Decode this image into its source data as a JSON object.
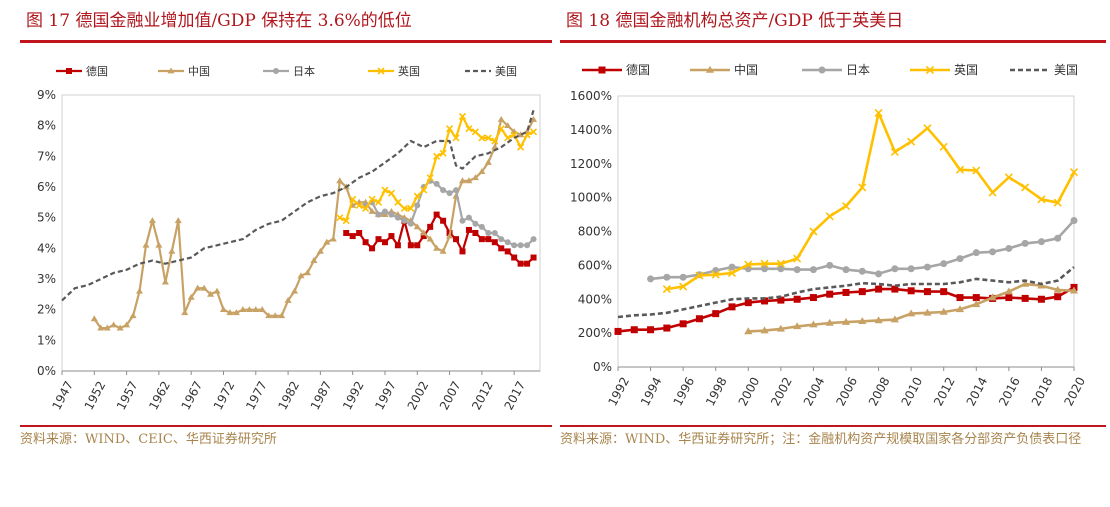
{
  "figures": [
    {
      "title": "图 17   德国金融业增加值/GDP 保持在 3.6%的低位",
      "source": "资料来源：WIND、CEIC、华西证券研究所",
      "chart_data": {
        "type": "line",
        "x_ticks": [
          "1947",
          "1952",
          "1957",
          "1962",
          "1967",
          "1972",
          "1977",
          "1982",
          "1987",
          "1992",
          "1997",
          "2002",
          "2007",
          "2012",
          "2017"
        ],
        "xlim": [
          1947,
          2021
        ],
        "ylim": [
          0,
          9
        ],
        "y_ticks": [
          "0%",
          "1%",
          "2%",
          "3%",
          "4%",
          "5%",
          "6%",
          "7%",
          "8%",
          "9%"
        ],
        "grid": false,
        "legend": "top",
        "series": [
          {
            "name": "德国",
            "color": "#c00000",
            "marker": "square",
            "x": [
              1991,
              1992,
              1993,
              1994,
              1995,
              1996,
              1997,
              1998,
              1999,
              2000,
              2001,
              2002,
              2003,
              2004,
              2005,
              2006,
              2007,
              2008,
              2009,
              2010,
              2011,
              2012,
              2013,
              2014,
              2015,
              2016,
              2017,
              2018,
              2019,
              2020
            ],
            "y": [
              4.5,
              4.4,
              4.5,
              4.2,
              4.0,
              4.3,
              4.2,
              4.4,
              4.1,
              4.9,
              4.1,
              4.1,
              4.4,
              4.7,
              5.1,
              4.9,
              4.5,
              4.3,
              3.9,
              4.6,
              4.5,
              4.3,
              4.3,
              4.2,
              4.0,
              3.9,
              3.7,
              3.5,
              3.5,
              3.7
            ]
          },
          {
            "name": "中国",
            "color": "#c8a265",
            "marker": "triangle",
            "x": [
              1952,
              1953,
              1954,
              1955,
              1956,
              1957,
              1958,
              1959,
              1960,
              1961,
              1962,
              1963,
              1964,
              1965,
              1966,
              1967,
              1968,
              1969,
              1970,
              1971,
              1972,
              1973,
              1974,
              1975,
              1976,
              1977,
              1978,
              1979,
              1980,
              1981,
              1982,
              1983,
              1984,
              1985,
              1986,
              1987,
              1988,
              1989,
              1990,
              1991,
              1992,
              1993,
              1994,
              1995,
              1996,
              1997,
              1998,
              1999,
              2000,
              2001,
              2002,
              2003,
              2004,
              2005,
              2006,
              2007,
              2008,
              2009,
              2010,
              2011,
              2012,
              2013,
              2014,
              2015,
              2016,
              2017,
              2018,
              2019,
              2020
            ],
            "y": [
              1.7,
              1.4,
              1.4,
              1.5,
              1.4,
              1.5,
              1.8,
              2.6,
              4.1,
              4.9,
              4.1,
              2.9,
              3.9,
              4.9,
              1.9,
              2.4,
              2.7,
              2.7,
              2.5,
              2.6,
              2.0,
              1.9,
              1.9,
              2.0,
              2.0,
              2.0,
              2.0,
              1.8,
              1.8,
              1.8,
              2.3,
              2.6,
              3.1,
              3.2,
              3.6,
              3.9,
              4.2,
              4.3,
              6.2,
              6.0,
              5.4,
              5.5,
              5.5,
              5.2,
              5.1,
              5.1,
              5.2,
              5.1,
              5.0,
              4.9,
              4.7,
              4.5,
              4.3,
              4.0,
              3.9,
              4.4,
              5.7,
              6.2,
              6.2,
              6.3,
              6.5,
              6.8,
              7.3,
              8.2,
              8.0,
              7.8,
              7.7,
              7.8,
              8.2
            ]
          },
          {
            "name": "日本",
            "color": "#a6a6a6",
            "marker": "circle",
            "x": [
              1994,
              1995,
              1996,
              1997,
              1998,
              1999,
              2000,
              2001,
              2002,
              2003,
              2004,
              2005,
              2006,
              2007,
              2008,
              2009,
              2010,
              2011,
              2012,
              2013,
              2014,
              2015,
              2016,
              2017,
              2018,
              2019,
              2020
            ],
            "y": [
              5.4,
              5.5,
              5.1,
              5.2,
              5.1,
              5.0,
              4.9,
              4.8,
              5.4,
              6.0,
              6.2,
              6.1,
              5.9,
              5.8,
              5.9,
              4.9,
              5.0,
              4.8,
              4.7,
              4.5,
              4.5,
              4.3,
              4.2,
              4.1,
              4.1,
              4.1,
              4.3
            ]
          },
          {
            "name": "英国",
            "color": "#ffc000",
            "marker": "x",
            "x": [
              1990,
              1991,
              1992,
              1993,
              1994,
              1995,
              1996,
              1997,
              1998,
              1999,
              2000,
              2001,
              2002,
              2003,
              2004,
              2005,
              2006,
              2007,
              2008,
              2009,
              2010,
              2011,
              2012,
              2013,
              2014,
              2015,
              2016,
              2017,
              2018,
              2019,
              2020
            ],
            "y": [
              5.0,
              4.9,
              5.6,
              5.4,
              5.3,
              5.6,
              5.5,
              5.9,
              5.8,
              5.5,
              5.3,
              5.3,
              5.7,
              5.9,
              6.3,
              7.0,
              7.1,
              7.9,
              7.6,
              8.3,
              7.9,
              7.8,
              7.6,
              7.6,
              7.5,
              7.9,
              7.6,
              7.7,
              7.3,
              7.7,
              7.8
            ]
          },
          {
            "name": "美国",
            "color": "#595959",
            "marker": "none",
            "dash": true,
            "x": [
              1947,
              1949,
              1951,
              1953,
              1955,
              1957,
              1959,
              1961,
              1963,
              1965,
              1967,
              1969,
              1971,
              1973,
              1975,
              1977,
              1979,
              1981,
              1983,
              1985,
              1987,
              1989,
              1991,
              1993,
              1995,
              1997,
              1999,
              2001,
              2003,
              2005,
              2007,
              2008,
              2009,
              2011,
              2013,
              2015,
              2017,
              2019,
              2020
            ],
            "y": [
              2.3,
              2.7,
              2.8,
              3.0,
              3.2,
              3.3,
              3.5,
              3.6,
              3.5,
              3.6,
              3.7,
              4.0,
              4.1,
              4.2,
              4.3,
              4.6,
              4.8,
              4.9,
              5.2,
              5.5,
              5.7,
              5.8,
              6.0,
              6.3,
              6.5,
              6.8,
              7.1,
              7.5,
              7.3,
              7.5,
              7.5,
              6.7,
              6.6,
              7.0,
              7.1,
              7.3,
              7.6,
              7.8,
              8.5
            ]
          }
        ]
      }
    },
    {
      "title": "图 18   德国金融机构总资产/GDP 低于英美日",
      "source": "资料来源：WIND、华西证券研究所；注：金融机构资产规模取国家各分部资产负债表口径",
      "chart_data": {
        "type": "line",
        "x_ticks": [
          "1992",
          "1994",
          "1996",
          "1998",
          "2000",
          "2002",
          "2004",
          "2006",
          "2008",
          "2010",
          "2012",
          "2014",
          "2016",
          "2018",
          "2020"
        ],
        "xlim": [
          1992,
          2020
        ],
        "ylim": [
          0,
          1600
        ],
        "y_ticks": [
          "0%",
          "200%",
          "400%",
          "600%",
          "800%",
          "1000%",
          "1200%",
          "1400%",
          "1600%"
        ],
        "grid": false,
        "legend": "top",
        "series": [
          {
            "name": "德国",
            "color": "#c00000",
            "marker": "square",
            "x": [
              1992,
              1993,
              1994,
              1995,
              1996,
              1997,
              1998,
              1999,
              2000,
              2001,
              2002,
              2003,
              2004,
              2005,
              2006,
              2007,
              2008,
              2009,
              2010,
              2011,
              2012,
              2013,
              2014,
              2015,
              2016,
              2017,
              2018,
              2019,
              2020
            ],
            "y": [
              210,
              220,
              220,
              230,
              255,
              285,
              315,
              355,
              380,
              390,
              395,
              400,
              410,
              430,
              440,
              445,
              460,
              460,
              450,
              445,
              445,
              410,
              410,
              405,
              410,
              405,
              400,
              415,
              470
            ]
          },
          {
            "name": "中国",
            "color": "#c8a265",
            "marker": "triangle",
            "x": [
              2000,
              2001,
              2002,
              2003,
              2004,
              2005,
              2006,
              2007,
              2008,
              2009,
              2010,
              2011,
              2012,
              2013,
              2014,
              2015,
              2016,
              2017,
              2018,
              2019,
              2020
            ],
            "y": [
              210,
              215,
              225,
              240,
              250,
              260,
              265,
              270,
              275,
              280,
              315,
              320,
              325,
              340,
              370,
              410,
              445,
              490,
              480,
              455,
              450
            ]
          },
          {
            "name": "日本",
            "color": "#a6a6a6",
            "marker": "circle",
            "x": [
              1994,
              1995,
              1996,
              1997,
              1998,
              1999,
              2000,
              2001,
              2002,
              2003,
              2004,
              2005,
              2006,
              2007,
              2008,
              2009,
              2010,
              2011,
              2012,
              2013,
              2014,
              2015,
              2016,
              2017,
              2018,
              2019,
              2020
            ],
            "y": [
              520,
              530,
              530,
              545,
              570,
              590,
              580,
              580,
              580,
              575,
              575,
              600,
              575,
              565,
              550,
              580,
              580,
              590,
              610,
              640,
              675,
              680,
              700,
              730,
              740,
              760,
              865
            ]
          },
          {
            "name": "英国",
            "color": "#ffc000",
            "marker": "x",
            "x": [
              1995,
              1996,
              1997,
              1998,
              1999,
              2000,
              2001,
              2002,
              2003,
              2004,
              2005,
              2006,
              2007,
              2008,
              2009,
              2010,
              2011,
              2012,
              2013,
              2014,
              2015,
              2016,
              2017,
              2018,
              2019,
              2020
            ],
            "y": [
              460,
              475,
              540,
              545,
              555,
              605,
              610,
              610,
              640,
              800,
              890,
              950,
              1060,
              1500,
              1270,
              1330,
              1410,
              1300,
              1165,
              1160,
              1030,
              1120,
              1060,
              990,
              970,
              1150
            ]
          },
          {
            "name": "美国",
            "color": "#595959",
            "marker": "none",
            "dash": true,
            "x": [
              1992,
              1993,
              1994,
              1995,
              1996,
              1997,
              1998,
              1999,
              2000,
              2001,
              2002,
              2003,
              2004,
              2005,
              2006,
              2007,
              2008,
              2009,
              2010,
              2011,
              2012,
              2013,
              2014,
              2015,
              2016,
              2017,
              2018,
              2019,
              2020
            ],
            "y": [
              295,
              305,
              310,
              320,
              340,
              360,
              380,
              400,
              405,
              405,
              415,
              440,
              460,
              470,
              480,
              495,
              490,
              480,
              490,
              490,
              490,
              500,
              520,
              510,
              500,
              510,
              490,
              510,
              590
            ]
          }
        ]
      }
    }
  ]
}
